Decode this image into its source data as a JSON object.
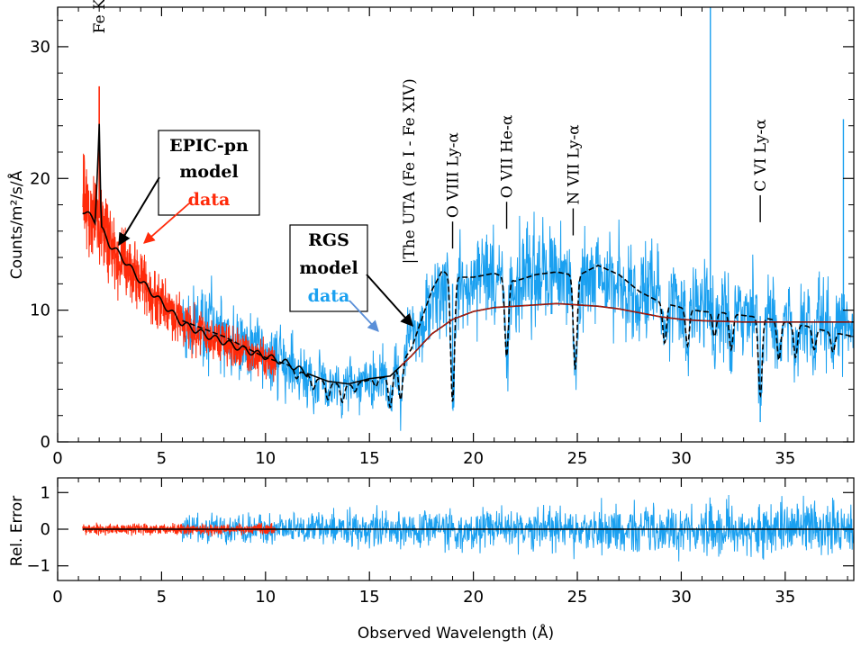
{
  "chart_data": [
    {
      "type": "line",
      "panel": "main",
      "ylabel": "Counts/m²/s/Å",
      "xlim": [
        0,
        38.3
      ],
      "ylim": [
        0,
        33
      ],
      "x_ticks": [
        "0",
        "5",
        "10",
        "15",
        "20",
        "25",
        "30",
        "35"
      ],
      "y_ticks": [
        "0",
        "10",
        "20",
        "30"
      ],
      "series": [
        {
          "name": "EPIC-pn data",
          "color": "#ff2a0a",
          "x_range": [
            1.2,
            10.5
          ],
          "continuum": [
            [
              1.2,
              18.5
            ],
            [
              1.5,
              17.5
            ],
            [
              2.0,
              16.5
            ],
            [
              2.5,
              15.2
            ],
            [
              3.0,
              14.0
            ],
            [
              3.5,
              13.0
            ],
            [
              4.0,
              12.0
            ],
            [
              5.0,
              10.5
            ],
            [
              6.0,
              9.0
            ],
            [
              7.0,
              8.2
            ],
            [
              8.0,
              7.5
            ],
            [
              9.0,
              6.8
            ],
            [
              10.0,
              6.3
            ],
            [
              10.5,
              6.0
            ]
          ],
          "lines": [
            [
              2.0,
              27.0
            ]
          ]
        },
        {
          "name": "EPIC-pn model",
          "color": "#000000",
          "points": [
            [
              1.2,
              17.6
            ],
            [
              1.5,
              17.2
            ],
            [
              1.8,
              16.8
            ],
            [
              1.95,
              22.0
            ],
            [
              2.0,
              24.2
            ],
            [
              2.05,
              20.0
            ],
            [
              2.1,
              16.2
            ],
            [
              2.5,
              15.0
            ],
            [
              3.0,
              14.2
            ],
            [
              3.5,
              13.2
            ],
            [
              4.0,
              12.2
            ],
            [
              5.0,
              10.6
            ],
            [
              6.0,
              9.0
            ],
            [
              7.0,
              8.2
            ],
            [
              8.0,
              7.6
            ],
            [
              9.0,
              7.0
            ],
            [
              10.0,
              6.5
            ],
            [
              11.0,
              6.0
            ],
            [
              12.0,
              5.2
            ],
            [
              13.0,
              4.6
            ],
            [
              14.0,
              4.4
            ],
            [
              15.0,
              4.8
            ],
            [
              16.0,
              5.0
            ],
            [
              17.0,
              6.5
            ],
            [
              18.0,
              8.2
            ],
            [
              19.0,
              9.3
            ],
            [
              20.0,
              9.9
            ],
            [
              21.0,
              10.2
            ],
            [
              22.0,
              10.3
            ],
            [
              23.0,
              10.4
            ],
            [
              24.0,
              10.5
            ],
            [
              25.0,
              10.4
            ],
            [
              26.0,
              10.3
            ],
            [
              27.0,
              10.1
            ],
            [
              28.0,
              9.8
            ],
            [
              29.0,
              9.5
            ],
            [
              30.0,
              9.3
            ],
            [
              31.0,
              9.2
            ],
            [
              33.0,
              9.1
            ],
            [
              35.0,
              9.1
            ],
            [
              38.3,
              9.1
            ]
          ]
        },
        {
          "name": "RGS data",
          "color": "#1aa0f0",
          "x_range": [
            6.0,
            38.3
          ],
          "continuum": [
            [
              6.0,
              9.5
            ],
            [
              8.0,
              8.0
            ],
            [
              10.0,
              6.5
            ],
            [
              12.0,
              5.2
            ],
            [
              13.5,
              4.5
            ],
            [
              15.0,
              4.6
            ],
            [
              16.0,
              4.8
            ],
            [
              17.0,
              8.0
            ],
            [
              18.0,
              11.0
            ],
            [
              19.0,
              12.0
            ],
            [
              20.0,
              12.2
            ],
            [
              22.0,
              12.5
            ],
            [
              24.0,
              12.7
            ],
            [
              26.0,
              12.4
            ],
            [
              28.0,
              11.5
            ],
            [
              30.0,
              10.5
            ],
            [
              32.0,
              10.0
            ],
            [
              34.0,
              9.5
            ],
            [
              36.0,
              9.0
            ],
            [
              38.3,
              8.8
            ]
          ],
          "lines": [
            [
              31.4,
              33.0
            ],
            [
              37.8,
              24.5
            ],
            [
              19.0,
              2.5
            ],
            [
              33.8,
              1.5
            ]
          ]
        },
        {
          "name": "RGS model",
          "color": "#000000",
          "style": "dashed",
          "points": [
            [
              6.0,
              9.2
            ],
            [
              7.0,
              8.6
            ],
            [
              8.0,
              8.0
            ],
            [
              9.0,
              7.2
            ],
            [
              10.0,
              6.4
            ],
            [
              11.0,
              5.9
            ],
            [
              12.0,
              5.1
            ],
            [
              13.0,
              4.5
            ],
            [
              14.0,
              4.3
            ],
            [
              15.0,
              4.7
            ],
            [
              16.0,
              5.0
            ],
            [
              17.0,
              7.0
            ],
            [
              18.0,
              11.5
            ],
            [
              18.5,
              13.0
            ],
            [
              19.0,
              12.5
            ],
            [
              20.0,
              12.5
            ],
            [
              21.0,
              12.8
            ],
            [
              22.0,
              12.2
            ],
            [
              23.0,
              12.7
            ],
            [
              24.0,
              12.9
            ],
            [
              25.0,
              12.6
            ],
            [
              26.0,
              13.4
            ],
            [
              27.0,
              12.7
            ],
            [
              28.0,
              11.4
            ],
            [
              29.0,
              10.6
            ],
            [
              30.0,
              10.2
            ],
            [
              31.0,
              9.9
            ],
            [
              32.0,
              9.8
            ],
            [
              33.0,
              9.6
            ],
            [
              34.0,
              9.4
            ],
            [
              35.0,
              9.1
            ],
            [
              36.0,
              8.8
            ],
            [
              37.0,
              8.4
            ],
            [
              38.3,
              8.0
            ]
          ],
          "absorption": [
            [
              11.5,
              4.8
            ],
            [
              12.3,
              4.0
            ],
            [
              13.0,
              3.2
            ],
            [
              13.7,
              3.0
            ],
            [
              14.3,
              3.8
            ],
            [
              15.3,
              4.2
            ],
            [
              16.0,
              2.6
            ],
            [
              16.5,
              3.2
            ],
            [
              19.0,
              3.0
            ],
            [
              21.6,
              6.5
            ],
            [
              24.9,
              5.5
            ],
            [
              29.2,
              7.5
            ],
            [
              30.3,
              7.3
            ],
            [
              31.6,
              8.0
            ],
            [
              32.4,
              7.0
            ],
            [
              33.8,
              3.5
            ],
            [
              34.7,
              6.2
            ],
            [
              35.5,
              6.4
            ],
            [
              36.4,
              7.0
            ],
            [
              37.3,
              6.8
            ]
          ]
        }
      ],
      "annotations": [
        {
          "text": "Fe Kα",
          "x": 2.0,
          "y": 31.0
        },
        {
          "text": "|The UTA (Fe I - Fe XIV)",
          "x": 16.9,
          "y": 13.5
        },
        {
          "text": "O VIII Ly-α",
          "x": 19.0,
          "y": 17.0
        },
        {
          "text": "O VII He-α",
          "x": 21.6,
          "y": 18.5
        },
        {
          "text": "N VII Ly-α",
          "x": 24.8,
          "y": 18.0
        },
        {
          "text": "C VI Ly-α",
          "x": 33.8,
          "y": 19.0
        }
      ],
      "legend_boxes": [
        {
          "lines": [
            {
              "text": "EPIC-pn",
              "color": "#000000"
            },
            {
              "text": "model",
              "color": "#000000"
            },
            {
              "text": "data",
              "color": "#ff2a0a"
            }
          ]
        },
        {
          "lines": [
            {
              "text": "RGS",
              "color": "#000000"
            },
            {
              "text": "model",
              "color": "#000000"
            },
            {
              "text": "data",
              "color": "#1aa0f0"
            }
          ]
        }
      ]
    },
    {
      "type": "line",
      "panel": "residuals",
      "xlabel": "Observed Wavelength (Å)",
      "ylabel": "Rel. Error",
      "xlim": [
        0,
        38.3
      ],
      "ylim": [
        -1.4,
        1.4
      ],
      "x_ticks": [
        "0",
        "5",
        "10",
        "15",
        "20",
        "25",
        "30",
        "35"
      ],
      "y_ticks": [
        "−1",
        "0",
        "1"
      ],
      "series": [
        {
          "name": "EPIC-pn residuals",
          "color": "#ff2a0a",
          "x_range": [
            1.2,
            10.5
          ],
          "amplitude": 0.1
        },
        {
          "name": "RGS residuals",
          "color": "#1aa0f0",
          "x_range": [
            6.0,
            38.3
          ],
          "amplitude": 0.45
        },
        {
          "name": "zero line",
          "color": "#000000",
          "points": [
            [
              1.2,
              0
            ],
            [
              38.3,
              0
            ]
          ]
        }
      ]
    }
  ]
}
